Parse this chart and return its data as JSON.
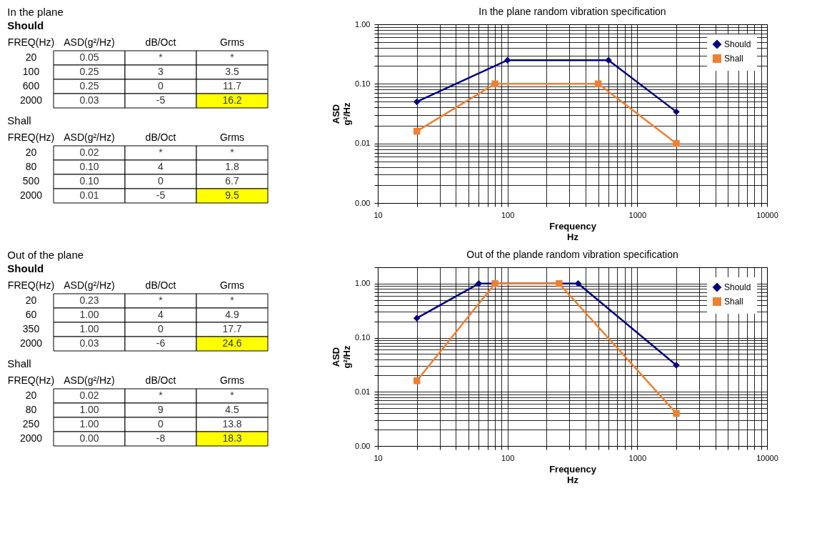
{
  "chart_data": [
    {
      "type": "heatmap",
      "title": "In the plane",
      "subtitle": "Should",
      "ylabel": "FREQ(Hz)",
      "categories": [
        "ASD(g²/Hz)",
        "dB/Oct",
        "Grms"
      ],
      "y_categories": [
        "20",
        "100",
        "600",
        "2000"
      ],
      "cells": [
        [
          0.05,
          null,
          null
        ],
        [
          0.25,
          3,
          3.5
        ],
        [
          0.25,
          0,
          11.7
        ],
        [
          0.03,
          -5,
          16.2
        ]
      ],
      "cell_labels": [
        [
          "0.05",
          "*",
          "*"
        ],
        [
          "0.25",
          "3",
          "3.5"
        ],
        [
          "0.25",
          "0",
          "11.7"
        ],
        [
          "0.03",
          "-5",
          "16.2"
        ]
      ]
    },
    {
      "type": "heatmap",
      "title": "Shall",
      "ylabel": "FREQ(Hz)",
      "categories": [
        "ASD(g²/Hz)",
        "dB/Oct",
        "Grms"
      ],
      "y_categories": [
        "20",
        "80",
        "500",
        "2000"
      ],
      "cells": [
        [
          0.02,
          null,
          null
        ],
        [
          0.1,
          4,
          1.8
        ],
        [
          0.1,
          0,
          6.7
        ],
        [
          0.01,
          -5,
          9.5
        ]
      ],
      "cell_labels": [
        [
          "0.02",
          "*",
          "*"
        ],
        [
          "0.10",
          "4",
          "1.8"
        ],
        [
          "0.10",
          "0",
          "6.7"
        ],
        [
          "0.01",
          "-5",
          "9.5"
        ]
      ]
    },
    {
      "type": "line",
      "title": "In the plane random vibration specification",
      "xlabel": "Frequency\nHz",
      "ylabel": "ASD\ng²/Hz",
      "log": "xy",
      "grid": true,
      "legend": "top right",
      "xlim": [
        10,
        10000
      ],
      "ylim": [
        0.001,
        1
      ],
      "xticks": [
        10,
        {
          "value": 20,
          "label": null
        },
        {
          "value": 30,
          "label": null
        },
        {
          "value": 40,
          "label": null
        },
        {
          "value": 50,
          "label": null
        },
        {
          "value": 60,
          "label": null
        },
        {
          "value": 70,
          "label": null
        },
        {
          "value": 80,
          "label": null
        },
        {
          "value": 90,
          "label": null
        },
        100,
        {
          "value": 200,
          "label": null
        },
        {
          "value": 300,
          "label": null
        },
        {
          "value": 400,
          "label": null
        },
        {
          "value": 500,
          "label": null
        },
        {
          "value": 600,
          "label": null
        },
        {
          "value": 700,
          "label": null
        },
        {
          "value": 800,
          "label": null
        },
        {
          "value": 900,
          "label": null
        },
        1000,
        {
          "value": 2000,
          "label": null
        },
        {
          "value": 3000,
          "label": null
        },
        {
          "value": 4000,
          "label": null
        },
        {
          "value": 5000,
          "label": null
        },
        {
          "value": 6000,
          "label": null
        },
        {
          "value": 7000,
          "label": null
        },
        {
          "value": 8000,
          "label": null
        },
        {
          "value": 9000,
          "label": null
        },
        10000
      ],
      "yticks": [
        {
          "value": 0.001,
          "label": "0.00"
        },
        {
          "value": 0.002,
          "label": null
        },
        {
          "value": 0.003,
          "label": null
        },
        {
          "value": 0.004,
          "label": null
        },
        {
          "value": 0.005,
          "label": null
        },
        {
          "value": 0.006,
          "label": null
        },
        {
          "value": 0.007,
          "label": null
        },
        {
          "value": 0.008,
          "label": null
        },
        {
          "value": 0.009,
          "label": null
        },
        {
          "value": 0.01,
          "label": "0.01"
        },
        {
          "value": 0.02,
          "label": null
        },
        {
          "value": 0.03,
          "label": null
        },
        {
          "value": 0.04,
          "label": null
        },
        {
          "value": 0.05,
          "label": null
        },
        {
          "value": 0.06,
          "label": null
        },
        {
          "value": 0.07,
          "label": null
        },
        {
          "value": 0.08,
          "label": null
        },
        {
          "value": 0.09,
          "label": null
        },
        {
          "value": 0.1,
          "label": "0.10"
        },
        {
          "value": 0.2,
          "label": null
        },
        {
          "value": 0.3,
          "label": null
        },
        {
          "value": 0.4,
          "label": null
        },
        {
          "value": 0.5,
          "label": null
        },
        {
          "value": 0.6,
          "label": null
        },
        {
          "value": 0.7,
          "label": null
        },
        {
          "value": 0.8,
          "label": null
        },
        {
          "value": 0.9,
          "label": null
        },
        {
          "value": 1,
          "label": "1.00"
        }
      ],
      "series": [
        {
          "name": "Should",
          "color": "#000080",
          "marker": "diamond",
          "x": [
            20,
            100,
            600,
            2000
          ],
          "values": [
            0.05,
            0.25,
            0.25,
            0.034
          ]
        },
        {
          "name": "Shall",
          "color": "#f07f30",
          "marker": "square",
          "x": [
            20,
            80,
            500,
            2000
          ],
          "values": [
            0.016,
            0.1,
            0.1,
            0.01
          ]
        }
      ]
    },
    {
      "type": "heatmap",
      "title": "Out of the plane",
      "subtitle": "Should",
      "ylabel": "FREQ(Hz)",
      "categories": [
        "ASD(g²/Hz)",
        "dB/Oct",
        "Grms"
      ],
      "y_categories": [
        "20",
        "60",
        "350",
        "2000"
      ],
      "cells": [
        [
          0.23,
          null,
          null
        ],
        [
          1,
          4,
          4.9
        ],
        [
          1,
          0,
          17.7
        ],
        [
          0.03,
          -6,
          24.6
        ]
      ],
      "cell_labels": [
        [
          "0.23",
          "*",
          "*"
        ],
        [
          "1.00",
          "4",
          "4.9"
        ],
        [
          "1.00",
          "0",
          "17.7"
        ],
        [
          "0.03",
          "-6",
          "24.6"
        ]
      ]
    },
    {
      "type": "heatmap",
      "title": "Shall",
      "ylabel": "FREQ(Hz)",
      "categories": [
        "ASD(g²/Hz)",
        "dB/Oct",
        "Grms"
      ],
      "y_categories": [
        "20",
        "80",
        "250",
        "2000"
      ],
      "cells": [
        [
          0.02,
          null,
          null
        ],
        [
          1,
          9,
          4.5
        ],
        [
          1,
          0,
          13.8
        ],
        [
          0,
          -8,
          18.3
        ]
      ],
      "cell_labels": [
        [
          "0.02",
          "*",
          "*"
        ],
        [
          "1.00",
          "9",
          "4.5"
        ],
        [
          "1.00",
          "0",
          "13.8"
        ],
        [
          "0.00",
          "-8",
          "18.3"
        ]
      ]
    },
    {
      "type": "line",
      "title": "Out of the plande random vibration specification",
      "xlabel": "Frequency\nHz",
      "ylabel": "ASD\ng²/Hz",
      "log": "xy",
      "grid": true,
      "legend": "top right",
      "xlim": [
        10,
        10000
      ],
      "ylim": [
        0.001,
        2
      ],
      "xticks": [
        10,
        {
          "value": 20,
          "label": null
        },
        {
          "value": 30,
          "label": null
        },
        {
          "value": 40,
          "label": null
        },
        {
          "value": 50,
          "label": null
        },
        {
          "value": 60,
          "label": null
        },
        {
          "value": 70,
          "label": null
        },
        {
          "value": 80,
          "label": null
        },
        {
          "value": 90,
          "label": null
        },
        100,
        {
          "value": 200,
          "label": null
        },
        {
          "value": 300,
          "label": null
        },
        {
          "value": 400,
          "label": null
        },
        {
          "value": 500,
          "label": null
        },
        {
          "value": 600,
          "label": null
        },
        {
          "value": 700,
          "label": null
        },
        {
          "value": 800,
          "label": null
        },
        {
          "value": 900,
          "label": null
        },
        1000,
        {
          "value": 2000,
          "label": null
        },
        {
          "value": 3000,
          "label": null
        },
        {
          "value": 4000,
          "label": null
        },
        {
          "value": 5000,
          "label": null
        },
        {
          "value": 6000,
          "label": null
        },
        {
          "value": 7000,
          "label": null
        },
        {
          "value": 8000,
          "label": null
        },
        {
          "value": 9000,
          "label": null
        },
        10000
      ],
      "yticks": [
        {
          "value": 0.001,
          "label": "0.00"
        },
        {
          "value": 0.002,
          "label": null
        },
        {
          "value": 0.003,
          "label": null
        },
        {
          "value": 0.004,
          "label": null
        },
        {
          "value": 0.005,
          "label": null
        },
        {
          "value": 0.006,
          "label": null
        },
        {
          "value": 0.007,
          "label": null
        },
        {
          "value": 0.008,
          "label": null
        },
        {
          "value": 0.009,
          "label": null
        },
        {
          "value": 0.01,
          "label": "0.01"
        },
        {
          "value": 0.02,
          "label": null
        },
        {
          "value": 0.03,
          "label": null
        },
        {
          "value": 0.04,
          "label": null
        },
        {
          "value": 0.05,
          "label": null
        },
        {
          "value": 0.06,
          "label": null
        },
        {
          "value": 0.07,
          "label": null
        },
        {
          "value": 0.08,
          "label": null
        },
        {
          "value": 0.09,
          "label": null
        },
        {
          "value": 0.1,
          "label": "0.10"
        },
        {
          "value": 0.2,
          "label": null
        },
        {
          "value": 0.3,
          "label": null
        },
        {
          "value": 0.4,
          "label": null
        },
        {
          "value": 0.5,
          "label": null
        },
        {
          "value": 0.6,
          "label": null
        },
        {
          "value": 0.7,
          "label": null
        },
        {
          "value": 0.8,
          "label": null
        },
        {
          "value": 0.9,
          "label": null
        },
        {
          "value": 1,
          "label": "1.00"
        },
        {
          "value": 2,
          "label": null
        }
      ],
      "series": [
        {
          "name": "Should",
          "color": "#000080",
          "marker": "diamond",
          "x": [
            20,
            60,
            350,
            2000
          ],
          "values": [
            0.23,
            1,
            1,
            0.031
          ]
        },
        {
          "name": "Shall",
          "color": "#f07f30",
          "marker": "square",
          "x": [
            20,
            80,
            250,
            2000
          ],
          "values": [
            0.016,
            1,
            1,
            0.004
          ]
        }
      ]
    }
  ]
}
